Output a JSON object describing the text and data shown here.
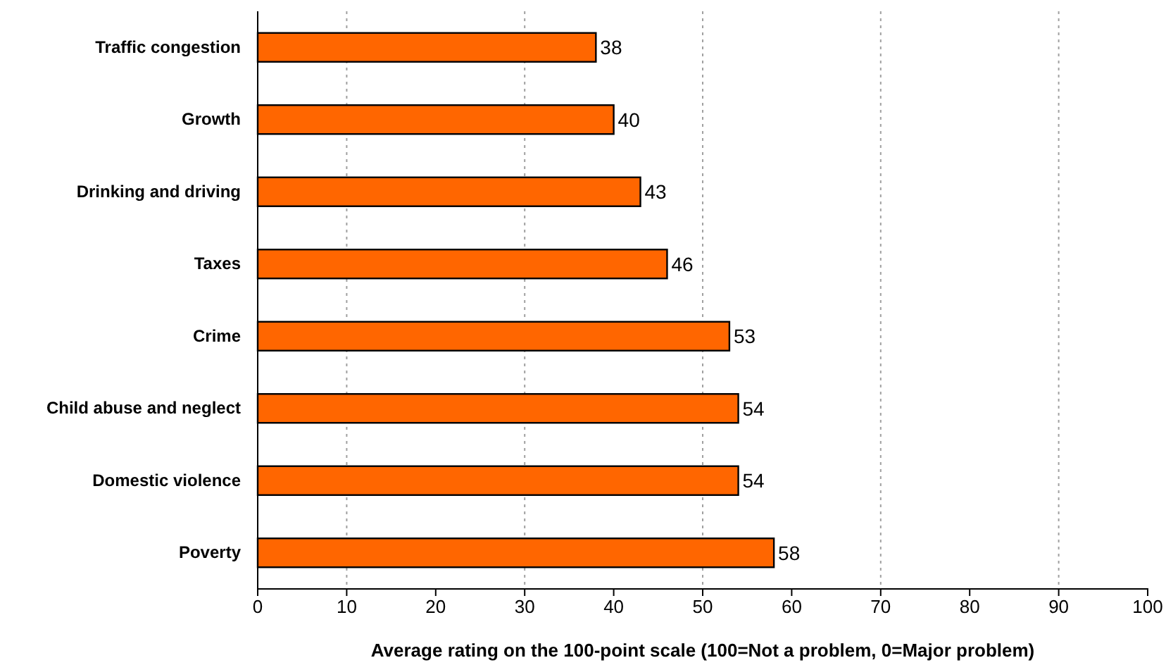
{
  "chart_data": {
    "type": "bar",
    "orientation": "horizontal",
    "xlabel": "Average rating on the 100-point scale (100=Not a problem, 0=Major problem)",
    "categories": [
      "Traffic congestion",
      "Growth",
      "Drinking and driving",
      "Taxes",
      "Crime",
      "Child abuse and neglect",
      "Domestic violence",
      "Poverty"
    ],
    "values": [
      38,
      40,
      43,
      46,
      53,
      54,
      54,
      58
    ],
    "color": "#ff6600",
    "data_labels": true,
    "xlim": [
      0,
      100
    ],
    "xticks": [
      0,
      10,
      20,
      30,
      40,
      50,
      60,
      70,
      80,
      90,
      100
    ],
    "grid": false,
    "ref_lines": [
      {
        "axis": "x",
        "value": 10,
        "color": "#a0a0a0",
        "line_style": "dotted"
      },
      {
        "axis": "x",
        "value": 30,
        "color": "#a0a0a0",
        "line_style": "dotted"
      },
      {
        "axis": "x",
        "value": 50,
        "color": "#a0a0a0",
        "line_style": "dotted"
      },
      {
        "axis": "x",
        "value": 70,
        "color": "#a0a0a0",
        "line_style": "dotted"
      },
      {
        "axis": "x",
        "value": 90,
        "color": "#a0a0a0",
        "line_style": "dotted"
      }
    ]
  }
}
